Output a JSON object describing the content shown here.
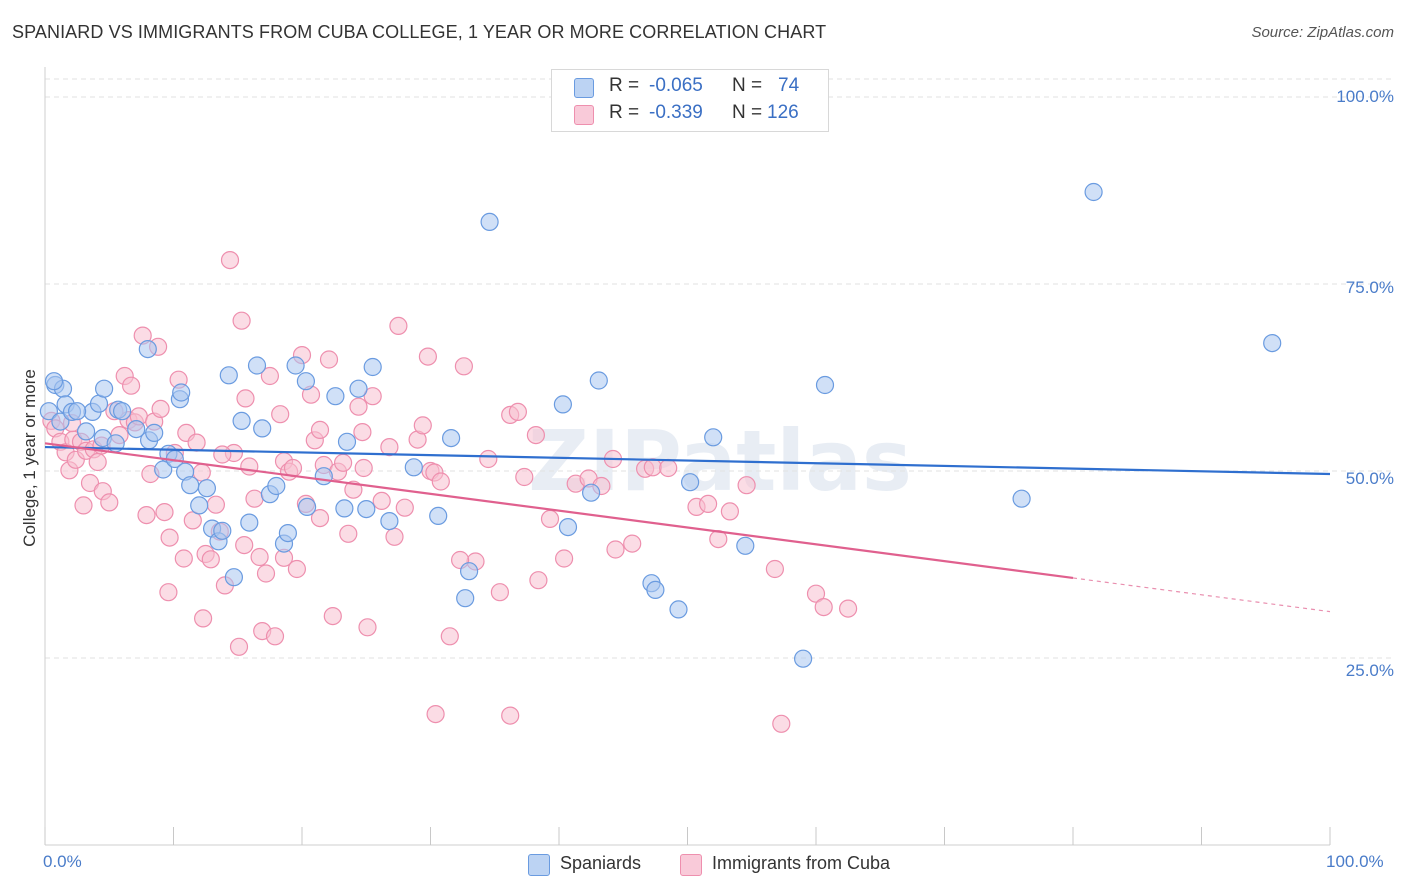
{
  "header": {
    "title": "SPANIARD VS IMMIGRANTS FROM CUBA COLLEGE, 1 YEAR OR MORE CORRELATION CHART",
    "source": "Source: ZipAtlas.com"
  },
  "legend": {
    "rows": [
      {
        "r_label": "R =",
        "r_value": "-0.065",
        "n_label": "N =",
        "n_value": "74",
        "color": "#a9c6f0"
      },
      {
        "r_label": "R =",
        "r_value": "-0.339",
        "n_label": "N =",
        "n_value": "126",
        "color": "#f5b3c8"
      }
    ]
  },
  "watermark": "ZIPatlas",
  "colors": {
    "blue_fill": "#a9c6f0",
    "blue_stroke": "#6a9be0",
    "blue_line": "#2f6fcf",
    "pink_fill": "#f7bfd0",
    "pink_stroke": "#ee8fae",
    "pink_line": "#e0608e",
    "tick_text": "#4a7cc9"
  },
  "chart_data": {
    "type": "scatter",
    "title": "SPANIARD VS IMMIGRANTS FROM CUBA COLLEGE, 1 YEAR OR MORE CORRELATION CHART",
    "xlabel": "",
    "ylabel": "College, 1 year or more",
    "x_tick_labels": [
      "0.0%",
      "100.0%"
    ],
    "y_tick_labels": [
      "100.0%",
      "75.0%",
      "50.0%",
      "25.0%"
    ],
    "xlim": [
      0,
      100
    ],
    "ylim": [
      0,
      105
    ],
    "grid": true,
    "legend_position": "top-center",
    "series": [
      {
        "name": "Spaniards",
        "r": -0.065,
        "n": 74,
        "trend": {
          "x0": 0,
          "y0": 53.2,
          "x1": 100,
          "y1": 49.6
        },
        "points": [
          [
            0.3,
            58
          ],
          [
            0.8,
            61.5
          ],
          [
            1.2,
            56.6
          ],
          [
            1.4,
            61
          ],
          [
            1.6,
            58.9
          ],
          [
            2.1,
            57.9
          ],
          [
            3.2,
            55.3
          ],
          [
            3.7,
            57.9
          ],
          [
            4.2,
            59
          ],
          [
            4.5,
            54.4
          ],
          [
            4.6,
            61
          ],
          [
            5.5,
            53.7
          ],
          [
            5.7,
            58.2
          ],
          [
            6,
            58
          ],
          [
            7.1,
            55.6
          ],
          [
            8,
            66.3
          ],
          [
            8.1,
            54.1
          ],
          [
            8.5,
            55.1
          ],
          [
            9.2,
            50.2
          ],
          [
            9.6,
            52.3
          ],
          [
            10.1,
            51.6
          ],
          [
            10.5,
            59.6
          ],
          [
            10.6,
            60.5
          ],
          [
            10.9,
            49.9
          ],
          [
            11.3,
            48.1
          ],
          [
            12,
            45.4
          ],
          [
            12.6,
            47.7
          ],
          [
            13,
            42.3
          ],
          [
            13.5,
            40.6
          ],
          [
            13.8,
            42
          ],
          [
            14.3,
            62.8
          ],
          [
            14.7,
            35.8
          ],
          [
            15.3,
            56.7
          ],
          [
            15.9,
            43.1
          ],
          [
            16.5,
            64.1
          ],
          [
            16.9,
            55.7
          ],
          [
            17.5,
            46.9
          ],
          [
            18,
            48
          ],
          [
            18.6,
            40.3
          ],
          [
            18.9,
            41.7
          ],
          [
            19.5,
            64.1
          ],
          [
            20.3,
            62
          ],
          [
            20.4,
            45.2
          ],
          [
            21.7,
            49.3
          ],
          [
            22.6,
            60
          ],
          [
            23.3,
            45
          ],
          [
            23.5,
            53.9
          ],
          [
            24.4,
            61
          ],
          [
            25,
            44.9
          ],
          [
            25.5,
            63.9
          ],
          [
            26.8,
            43.3
          ],
          [
            28.7,
            50.5
          ],
          [
            30.6,
            44
          ],
          [
            31.6,
            54.4
          ],
          [
            32.7,
            33
          ],
          [
            33,
            36.6
          ],
          [
            34.6,
            83.3
          ],
          [
            40.3,
            58.9
          ],
          [
            40.7,
            42.5
          ],
          [
            42.5,
            47.1
          ],
          [
            43.1,
            62.1
          ],
          [
            47.2,
            35
          ],
          [
            47.5,
            34.1
          ],
          [
            49.3,
            31.5
          ],
          [
            50.2,
            48.5
          ],
          [
            52,
            54.5
          ],
          [
            54.5,
            40
          ],
          [
            59,
            24.9
          ],
          [
            60.7,
            61.5
          ],
          [
            76,
            46.3
          ],
          [
            81.6,
            87.3
          ],
          [
            95.5,
            67.1
          ],
          [
            0.7,
            62
          ],
          [
            2.5,
            58
          ]
        ]
      },
      {
        "name": "Immigrants from Cuba",
        "r": -0.339,
        "n": 126,
        "trend": {
          "x0": 0,
          "y0": 53.7,
          "x1": 80,
          "y1": 35.7,
          "dash_to_x": 100,
          "dash_to_y": 31.2
        },
        "points": [
          [
            0.5,
            56.7
          ],
          [
            0.8,
            55.7
          ],
          [
            1.2,
            53.9
          ],
          [
            1.6,
            52.5
          ],
          [
            1.9,
            50.1
          ],
          [
            2.2,
            54.2
          ],
          [
            2.4,
            51.5
          ],
          [
            2.8,
            53.9
          ],
          [
            3.2,
            52.7
          ],
          [
            3.5,
            48.4
          ],
          [
            3.8,
            52.9
          ],
          [
            4.1,
            51.2
          ],
          [
            4.5,
            47.3
          ],
          [
            5,
            45.8
          ],
          [
            5.4,
            58
          ],
          [
            5.8,
            54.8
          ],
          [
            6.2,
            62.7
          ],
          [
            6.5,
            56.8
          ],
          [
            7,
            56.5
          ],
          [
            7.3,
            57.3
          ],
          [
            7.6,
            68.1
          ],
          [
            7.9,
            44.1
          ],
          [
            8.2,
            49.6
          ],
          [
            8.5,
            56.6
          ],
          [
            8.8,
            66.6
          ],
          [
            9,
            58.3
          ],
          [
            9.3,
            44.5
          ],
          [
            9.7,
            41.1
          ],
          [
            10.1,
            52.4
          ],
          [
            10.4,
            62.2
          ],
          [
            10.8,
            38.3
          ],
          [
            11,
            55.1
          ],
          [
            11.5,
            43.4
          ],
          [
            11.8,
            53.8
          ],
          [
            12.2,
            49.8
          ],
          [
            12.5,
            38.9
          ],
          [
            12.9,
            38.2
          ],
          [
            13.3,
            45.5
          ],
          [
            13.6,
            41.9
          ],
          [
            14,
            34.7
          ],
          [
            14.4,
            78.2
          ],
          [
            14.7,
            52.4
          ],
          [
            15.1,
            26.5
          ],
          [
            15.3,
            70.1
          ],
          [
            15.6,
            59.7
          ],
          [
            15.9,
            50.6
          ],
          [
            16.3,
            46.3
          ],
          [
            16.7,
            38.5
          ],
          [
            16.9,
            28.6
          ],
          [
            17.2,
            36.3
          ],
          [
            17.5,
            62.7
          ],
          [
            17.9,
            27.9
          ],
          [
            18.3,
            57.6
          ],
          [
            18.6,
            51.3
          ],
          [
            19,
            49.9
          ],
          [
            19.3,
            50.4
          ],
          [
            19.6,
            36.9
          ],
          [
            20,
            65.5
          ],
          [
            20.3,
            45.6
          ],
          [
            20.7,
            60.2
          ],
          [
            21,
            54.1
          ],
          [
            21.4,
            55.5
          ],
          [
            21.7,
            50.8
          ],
          [
            22.1,
            64.9
          ],
          [
            22.4,
            30.6
          ],
          [
            22.8,
            49.9
          ],
          [
            23.2,
            51.1
          ],
          [
            23.6,
            41.6
          ],
          [
            24,
            47.5
          ],
          [
            24.4,
            58.6
          ],
          [
            24.8,
            50.4
          ],
          [
            25.1,
            29.1
          ],
          [
            25.5,
            60
          ],
          [
            26.2,
            46
          ],
          [
            26.8,
            53.2
          ],
          [
            27.5,
            69.4
          ],
          [
            28,
            45.1
          ],
          [
            29,
            54.2
          ],
          [
            29.4,
            56.1
          ],
          [
            29.8,
            65.3
          ],
          [
            30,
            50
          ],
          [
            30.3,
            49.8
          ],
          [
            30.8,
            48.6
          ],
          [
            31.5,
            27.9
          ],
          [
            32.6,
            64
          ],
          [
            33.5,
            37.9
          ],
          [
            34.5,
            51.6
          ],
          [
            35.4,
            33.8
          ],
          [
            36.2,
            57.5
          ],
          [
            36.8,
            57.9
          ],
          [
            37.3,
            49.2
          ],
          [
            38.4,
            35.4
          ],
          [
            39.3,
            43.6
          ],
          [
            40.4,
            38.3
          ],
          [
            41.3,
            48.3
          ],
          [
            42.3,
            49
          ],
          [
            43.3,
            48
          ],
          [
            44.2,
            51.6
          ],
          [
            45.7,
            40.3
          ],
          [
            46.7,
            50.3
          ],
          [
            47.3,
            50.5
          ],
          [
            48.5,
            50.4
          ],
          [
            50.7,
            45.2
          ],
          [
            51.6,
            45.6
          ],
          [
            52.4,
            40.9
          ],
          [
            53.3,
            44.6
          ],
          [
            54.6,
            48.1
          ],
          [
            56.8,
            36.9
          ],
          [
            60,
            33.6
          ],
          [
            60.6,
            31.8
          ],
          [
            62.5,
            31.6
          ],
          [
            30.4,
            17.5
          ],
          [
            36.2,
            17.3
          ],
          [
            57.3,
            16.2
          ],
          [
            32.3,
            38.1
          ],
          [
            27.2,
            41.2
          ],
          [
            44.4,
            39.5
          ],
          [
            18.6,
            38.4
          ],
          [
            24.7,
            55.2
          ],
          [
            38.2,
            54.8
          ],
          [
            13.8,
            52.2
          ],
          [
            6.7,
            61.4
          ],
          [
            2.1,
            56.4
          ],
          [
            4.4,
            53.4
          ],
          [
            3,
            45.4
          ],
          [
            9.6,
            33.8
          ],
          [
            12.3,
            30.3
          ],
          [
            15.5,
            40.1
          ],
          [
            21.4,
            43.7
          ]
        ]
      }
    ]
  }
}
